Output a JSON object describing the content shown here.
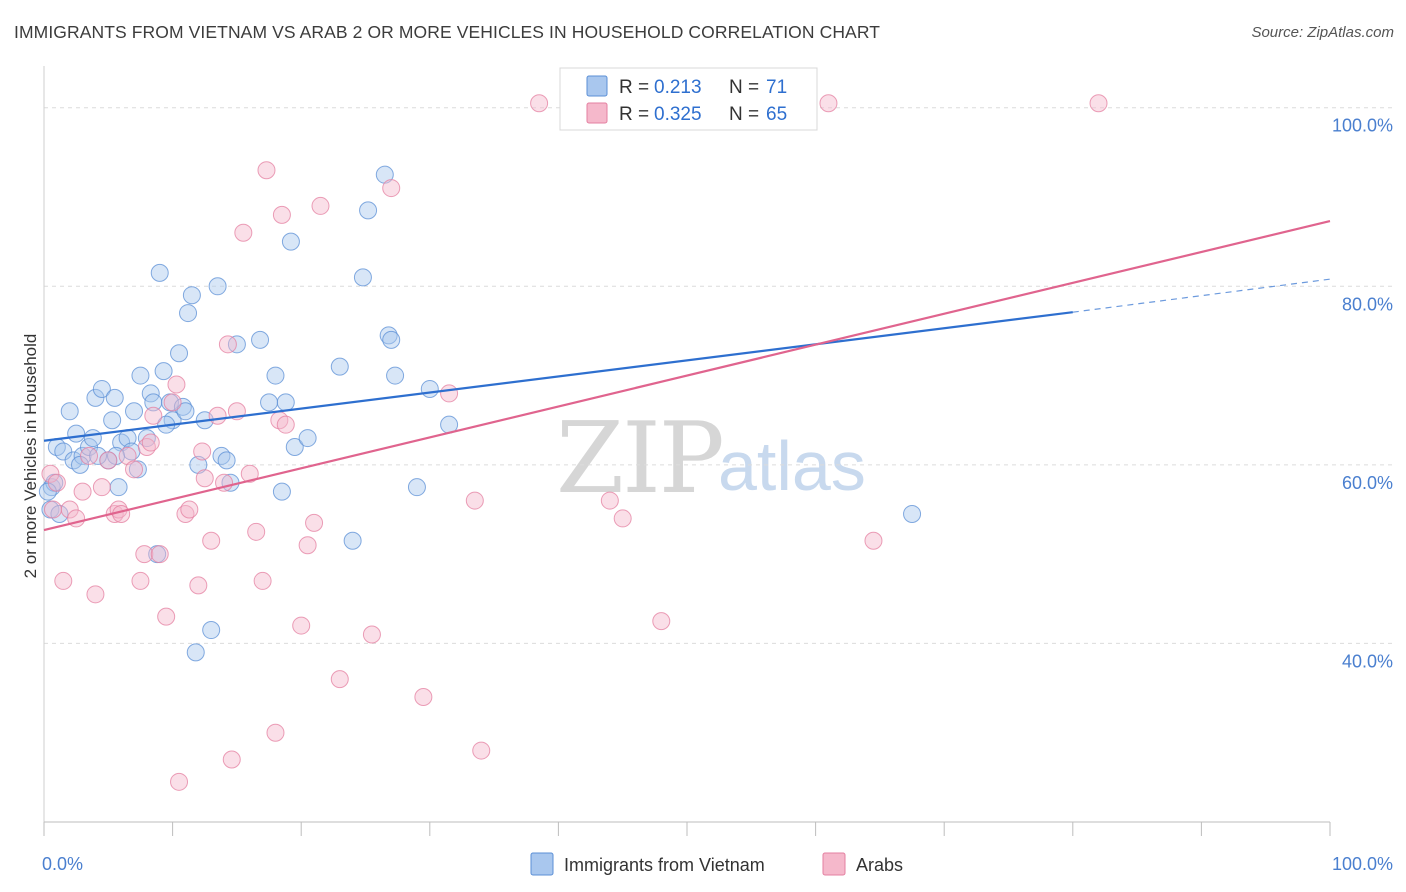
{
  "title": "IMMIGRANTS FROM VIETNAM VS ARAB 2 OR MORE VEHICLES IN HOUSEHOLD CORRELATION CHART",
  "source": "Source: ZipAtlas.com",
  "watermark": {
    "zip": "ZIP",
    "atlas": "atlas"
  },
  "colors": {
    "blue_fill": "#a9c7ee",
    "blue_stroke": "#5b8fd6",
    "blue_line": "#2e6fcf",
    "pink_fill": "#f5b8cb",
    "pink_stroke": "#e47fa0",
    "pink_line": "#e0648e",
    "tick_label": "#4a7fcf",
    "grid": "#dcdcdc"
  },
  "legend_top": {
    "series": [
      {
        "r_label": "R =",
        "r_value": "0.213",
        "n_label": "N =",
        "n_value": "71"
      },
      {
        "r_label": "R =",
        "r_value": "0.325",
        "n_label": "N =",
        "n_value": "65"
      }
    ]
  },
  "chart_data": {
    "type": "scatter",
    "title": "IMMIGRANTS FROM VIETNAM VS ARAB 2 OR MORE VEHICLES IN HOUSEHOLD CORRELATION CHART",
    "xlabel": "",
    "ylabel": "2 or more Vehicles in Household",
    "xlim": [
      0,
      100
    ],
    "ylim": [
      20,
      104
    ],
    "x_tick_labels": [
      "0.0%",
      "100.0%"
    ],
    "y_ticks": [
      40,
      60,
      80,
      100
    ],
    "y_tick_labels": [
      "40.0%",
      "60.0%",
      "80.0%",
      "100.0%"
    ],
    "grid": true,
    "legend_position": "bottom",
    "series": [
      {
        "name": "Immigrants from Vietnam",
        "color": "#5b8fd6",
        "r": 0.213,
        "n": 71,
        "trend": {
          "x": [
            0,
            80
          ],
          "y": [
            62.7,
            77.1
          ],
          "dashed_x": [
            80,
            100
          ],
          "dashed_y": [
            77.1,
            80.8
          ]
        },
        "points": [
          [
            0.5,
            55
          ],
          [
            0.6,
            57.5
          ],
          [
            0.8,
            58
          ],
          [
            1.0,
            62
          ],
          [
            1.5,
            61.5
          ],
          [
            2.0,
            66
          ],
          [
            2.3,
            60.5
          ],
          [
            2.5,
            63.5
          ],
          [
            3.0,
            61
          ],
          [
            3.5,
            62
          ],
          [
            4.0,
            67.5
          ],
          [
            4.5,
            68.5
          ],
          [
            5.0,
            60.5
          ],
          [
            5.3,
            65
          ],
          [
            5.5,
            67.5
          ],
          [
            5.8,
            57.5
          ],
          [
            6.0,
            62.5
          ],
          [
            6.5,
            63
          ],
          [
            7.0,
            66
          ],
          [
            7.3,
            59.5
          ],
          [
            7.5,
            70
          ],
          [
            8.0,
            63
          ],
          [
            8.3,
            68
          ],
          [
            8.5,
            67
          ],
          [
            8.8,
            50
          ],
          [
            9.0,
            81.5
          ],
          [
            9.3,
            70.5
          ],
          [
            9.8,
            67
          ],
          [
            10.0,
            65
          ],
          [
            10.5,
            72.5
          ],
          [
            10.8,
            66.5
          ],
          [
            11.2,
            77
          ],
          [
            11.5,
            79
          ],
          [
            11.8,
            39
          ],
          [
            12.0,
            60
          ],
          [
            12.5,
            65
          ],
          [
            13.0,
            41.5
          ],
          [
            13.5,
            80
          ],
          [
            13.8,
            61
          ],
          [
            14.2,
            60.5
          ],
          [
            14.5,
            58
          ],
          [
            15.0,
            73.5
          ],
          [
            16.8,
            74
          ],
          [
            17.5,
            67
          ],
          [
            18.0,
            70
          ],
          [
            18.5,
            57
          ],
          [
            18.8,
            67
          ],
          [
            19.2,
            85
          ],
          [
            19.5,
            62
          ],
          [
            20.5,
            63
          ],
          [
            23.0,
            71
          ],
          [
            24.0,
            51.5
          ],
          [
            24.8,
            81
          ],
          [
            25.2,
            88.5
          ],
          [
            26.5,
            92.5
          ],
          [
            26.8,
            74.5
          ],
          [
            27.0,
            74
          ],
          [
            27.3,
            70
          ],
          [
            29.0,
            57.5
          ],
          [
            30.0,
            68.5
          ],
          [
            31.5,
            64.5
          ],
          [
            67.5,
            54.5
          ],
          [
            1.2,
            54.5
          ],
          [
            2.8,
            60
          ],
          [
            4.2,
            61
          ],
          [
            6.8,
            61.5
          ],
          [
            9.5,
            64.5
          ],
          [
            11.0,
            66
          ],
          [
            3.8,
            63
          ],
          [
            5.6,
            61
          ],
          [
            0.3,
            57
          ]
        ]
      },
      {
        "name": "Arabs",
        "color": "#e47fa0",
        "r": 0.325,
        "n": 65,
        "trend": {
          "x": [
            0,
            100
          ],
          "y": [
            52.7,
            87.3
          ]
        },
        "points": [
          [
            0.5,
            59
          ],
          [
            0.7,
            55
          ],
          [
            1.0,
            58
          ],
          [
            1.5,
            47
          ],
          [
            2.0,
            55
          ],
          [
            2.5,
            54
          ],
          [
            3.0,
            57
          ],
          [
            3.5,
            61
          ],
          [
            4.0,
            45.5
          ],
          [
            4.5,
            57.5
          ],
          [
            5.0,
            60.5
          ],
          [
            5.5,
            54.5
          ],
          [
            5.8,
            55
          ],
          [
            6.0,
            54.5
          ],
          [
            6.5,
            61
          ],
          [
            7.0,
            59.5
          ],
          [
            7.5,
            47
          ],
          [
            7.8,
            50
          ],
          [
            8.0,
            62
          ],
          [
            8.3,
            62.5
          ],
          [
            8.5,
            65.5
          ],
          [
            9.0,
            50
          ],
          [
            9.5,
            43
          ],
          [
            10.0,
            67
          ],
          [
            10.3,
            69
          ],
          [
            10.5,
            24.5
          ],
          [
            11.0,
            54.5
          ],
          [
            11.3,
            55
          ],
          [
            12.0,
            46.5
          ],
          [
            12.3,
            61.5
          ],
          [
            12.5,
            58.5
          ],
          [
            13.0,
            51.5
          ],
          [
            13.5,
            65.5
          ],
          [
            14.0,
            58
          ],
          [
            14.3,
            73.5
          ],
          [
            14.6,
            27
          ],
          [
            15.0,
            66
          ],
          [
            15.5,
            86
          ],
          [
            16.0,
            59
          ],
          [
            16.5,
            52.5
          ],
          [
            17.0,
            47
          ],
          [
            17.3,
            93
          ],
          [
            18.0,
            30
          ],
          [
            18.3,
            65
          ],
          [
            18.5,
            88
          ],
          [
            18.8,
            64.5
          ],
          [
            20.0,
            42
          ],
          [
            20.5,
            51
          ],
          [
            21.0,
            53.5
          ],
          [
            21.5,
            89
          ],
          [
            23.0,
            36
          ],
          [
            25.5,
            41
          ],
          [
            27.0,
            91
          ],
          [
            29.5,
            34
          ],
          [
            31.5,
            68
          ],
          [
            33.5,
            56
          ],
          [
            34.0,
            28
          ],
          [
            38.5,
            100.5
          ],
          [
            44.0,
            56
          ],
          [
            45.0,
            54
          ],
          [
            47.5,
            100.5
          ],
          [
            48.0,
            42.5
          ],
          [
            61.0,
            100.5
          ],
          [
            64.5,
            51.5
          ],
          [
            82.0,
            100.5
          ]
        ]
      }
    ]
  }
}
